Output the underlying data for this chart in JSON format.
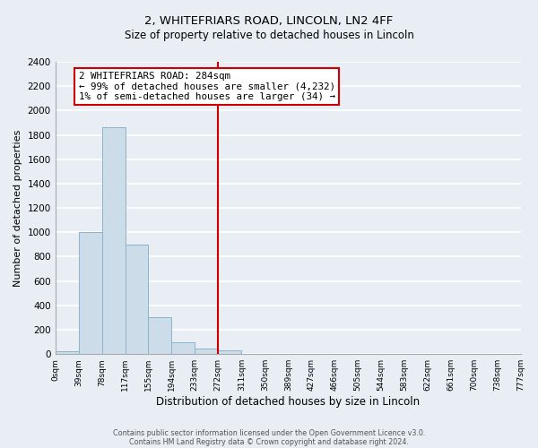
{
  "title": "2, WHITEFRIARS ROAD, LINCOLN, LN2 4FF",
  "subtitle": "Size of property relative to detached houses in Lincoln",
  "xlabel": "Distribution of detached houses by size in Lincoln",
  "ylabel": "Number of detached properties",
  "bin_edges": [
    0,
    39,
    78,
    117,
    155,
    194,
    233,
    272,
    311,
    350,
    389,
    427,
    466,
    505,
    544,
    583,
    622,
    661,
    700,
    738,
    777
  ],
  "bin_counts": [
    20,
    1000,
    1860,
    900,
    300,
    100,
    45,
    30,
    0,
    0,
    0,
    0,
    0,
    0,
    0,
    0,
    0,
    0,
    0,
    0
  ],
  "bar_color": "#ccdce8",
  "bar_edge_color": "#8ab4cc",
  "property_line_x": 272,
  "property_line_color": "#cc0000",
  "annotation_line1": "2 WHITEFRIARS ROAD: 284sqm",
  "annotation_line2": "← 99% of detached houses are smaller (4,232)",
  "annotation_line3": "1% of semi-detached houses are larger (34) →",
  "annotation_box_color": "#ffffff",
  "annotation_box_edge_color": "#cc0000",
  "ylim": [
    0,
    2400
  ],
  "yticks": [
    0,
    200,
    400,
    600,
    800,
    1000,
    1200,
    1400,
    1600,
    1800,
    2000,
    2200,
    2400
  ],
  "tick_labels": [
    "0sqm",
    "39sqm",
    "78sqm",
    "117sqm",
    "155sqm",
    "194sqm",
    "233sqm",
    "272sqm",
    "311sqm",
    "350sqm",
    "389sqm",
    "427sqm",
    "466sqm",
    "505sqm",
    "544sqm",
    "583sqm",
    "622sqm",
    "661sqm",
    "700sqm",
    "738sqm",
    "777sqm"
  ],
  "footer_line1": "Contains HM Land Registry data © Crown copyright and database right 2024.",
  "footer_line2": "Contains public sector information licensed under the Open Government Licence v3.0.",
  "background_color": "#e8eef4",
  "plot_bg_color": "#e8eef4",
  "grid_color": "#ffffff",
  "title_fontsize": 9.5,
  "subtitle_fontsize": 8.5
}
